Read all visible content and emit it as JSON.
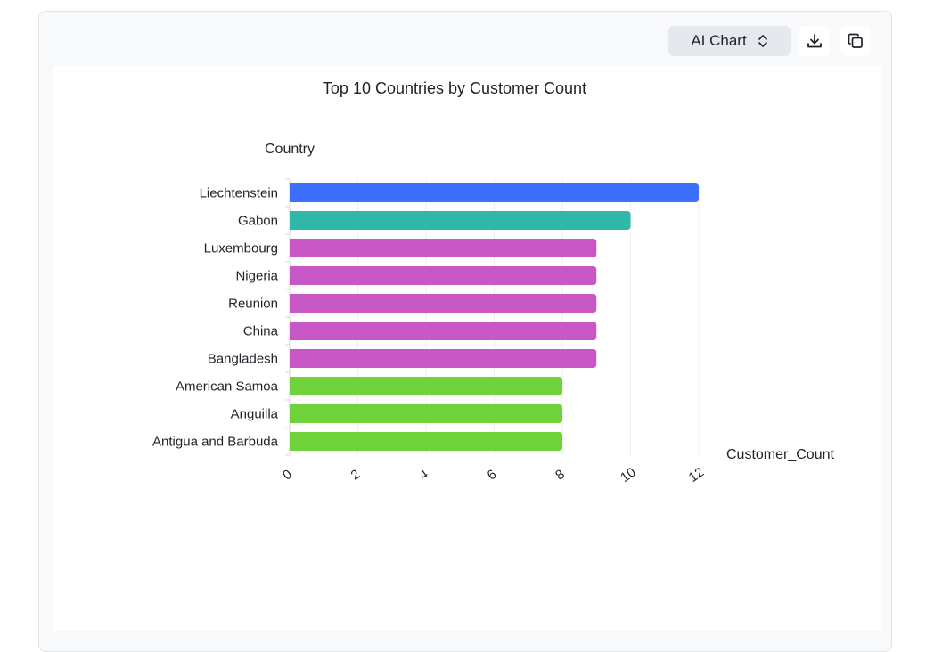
{
  "toolbar": {
    "chart_type_label": "AI Chart",
    "chart_type_icon": "chevron-up-down-icon",
    "download_icon": "download-icon",
    "copy_icon": "copy-icon"
  },
  "colors": {
    "blue": "#3d6ffd",
    "teal": "#2fb8aa",
    "purple": "#c657c4",
    "green": "#70d23a",
    "grid": "#eeeeee",
    "text": "#1f2329"
  },
  "chart_data": {
    "type": "bar",
    "orientation": "horizontal",
    "title": "Top 10 Countries by Customer Count",
    "ylabel": "Country",
    "xlabel": "Customer_Count",
    "categories": [
      "Liechtenstein",
      "Gabon",
      "Luxembourg",
      "Nigeria",
      "Reunion",
      "China",
      "Bangladesh",
      "American Samoa",
      "Anguilla",
      "Antigua and Barbuda"
    ],
    "values": [
      12,
      10,
      9,
      9,
      9,
      9,
      9,
      8,
      8,
      8
    ],
    "bar_colors": [
      "#3d6ffd",
      "#2fb8aa",
      "#c657c4",
      "#c657c4",
      "#c657c4",
      "#c657c4",
      "#c657c4",
      "#70d23a",
      "#70d23a",
      "#70d23a"
    ],
    "xlim": [
      0,
      12
    ],
    "xticks": [
      0,
      2,
      4,
      6,
      8,
      10,
      12
    ],
    "grid": true,
    "legend": "none"
  }
}
